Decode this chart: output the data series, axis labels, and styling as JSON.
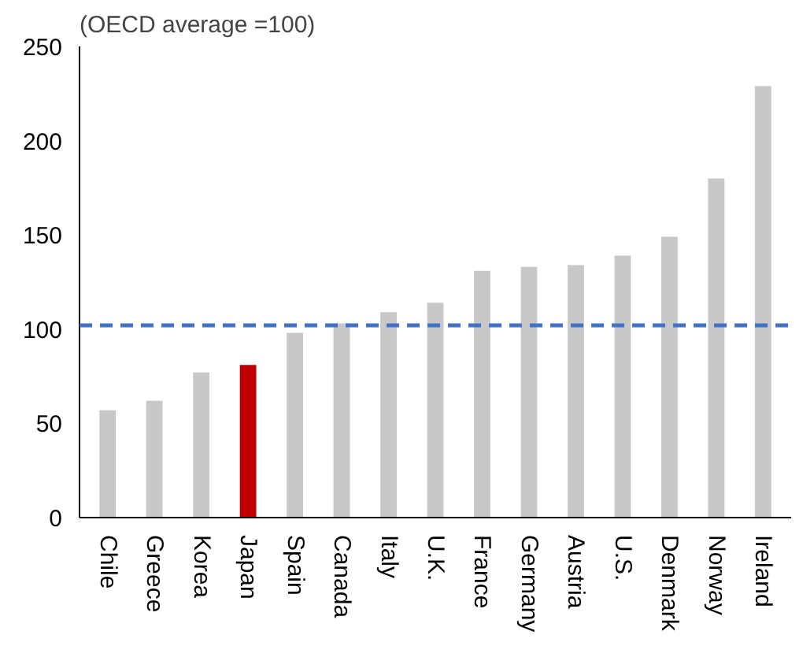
{
  "chart_data": {
    "type": "bar",
    "title": "(OECD average =100)",
    "categories": [
      "Chile",
      "Greece",
      "Korea",
      "Japan",
      "Spain",
      "Canada",
      "Italy",
      "U.K.",
      "France",
      "Germany",
      "Austria",
      "U.S.",
      "Denmark",
      "Norway",
      "Ireland"
    ],
    "values": [
      57,
      62,
      77,
      81,
      98,
      103,
      109,
      114,
      131,
      133,
      134,
      139,
      149,
      180,
      229
    ],
    "colors": [
      "#c8c8c8",
      "#c8c8c8",
      "#c8c8c8",
      "#c00000",
      "#c8c8c8",
      "#c8c8c8",
      "#c8c8c8",
      "#c8c8c8",
      "#c8c8c8",
      "#c8c8c8",
      "#c8c8c8",
      "#c8c8c8",
      "#c8c8c8",
      "#c8c8c8",
      "#c8c8c8"
    ],
    "ylim": [
      0,
      250
    ],
    "yticks": [
      0,
      50,
      100,
      150,
      200,
      250
    ],
    "grid": false,
    "ref_lines": [
      {
        "axis": "y",
        "value": 102,
        "color": "#4472c4",
        "line_style": "dashed"
      }
    ]
  }
}
